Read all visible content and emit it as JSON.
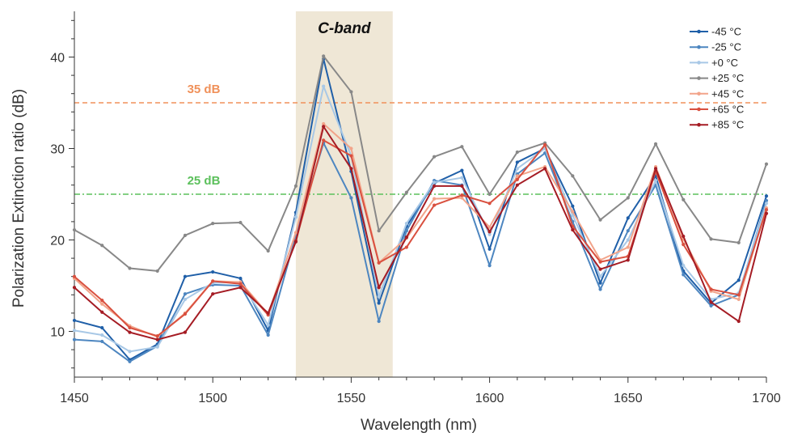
{
  "chart_data": {
    "type": "line",
    "xlabel": "Wavelength (nm)",
    "ylabel": "Polarization Extinction ratio (dB)",
    "xlim": [
      1450,
      1700
    ],
    "ylim": [
      5,
      45
    ],
    "xticks": [
      1450,
      1500,
      1550,
      1600,
      1650,
      1700
    ],
    "yticks": [
      10,
      20,
      30,
      40
    ],
    "grid": false,
    "legend_position": "top-right",
    "band": {
      "label": "C-band",
      "x_start": 1530,
      "x_end": 1565,
      "color": "#efe7d6"
    },
    "reference_lines": [
      {
        "label": "35 dB",
        "y": 35,
        "color": "#f0915a",
        "style": "dashed"
      },
      {
        "label": "25 dB",
        "y": 25,
        "color": "#5cc05c",
        "style": "dashdot"
      }
    ],
    "x": [
      1450,
      1460,
      1470,
      1480,
      1490,
      1500,
      1510,
      1520,
      1530,
      1540,
      1550,
      1560,
      1570,
      1580,
      1590,
      1600,
      1610,
      1620,
      1630,
      1640,
      1650,
      1660,
      1670,
      1680,
      1690,
      1700
    ],
    "series": [
      {
        "name": "-45 °C",
        "color": "#1f5fa8",
        "values": [
          11.2,
          10.4,
          6.9,
          8.6,
          16.0,
          16.5,
          15.8,
          10.1,
          23.0,
          39.8,
          27.5,
          13.1,
          21.5,
          26.2,
          27.6,
          19.0,
          28.5,
          30.0,
          23.7,
          15.3,
          22.4,
          27.0,
          16.6,
          13.1,
          15.6,
          24.8
        ]
      },
      {
        "name": "-25 °C",
        "color": "#4d86c0",
        "values": [
          9.1,
          8.9,
          6.7,
          8.4,
          14.1,
          15.1,
          15.0,
          9.6,
          20.5,
          30.6,
          24.6,
          11.1,
          21.0,
          26.5,
          26.0,
          17.2,
          27.2,
          29.5,
          22.0,
          14.6,
          21.0,
          26.0,
          16.2,
          12.8,
          14.0,
          24.3
        ]
      },
      {
        "name": "+0 °C",
        "color": "#a8c8e6",
        "values": [
          10.1,
          9.6,
          7.8,
          8.3,
          13.5,
          15.3,
          15.4,
          10.7,
          22.5,
          36.8,
          29.2,
          13.8,
          21.8,
          26.3,
          26.8,
          20.6,
          27.8,
          30.0,
          22.7,
          16.0,
          20.0,
          26.5,
          17.2,
          13.5,
          14.2,
          24.0
        ]
      },
      {
        "name": "+25 °C",
        "color": "#888888",
        "values": [
          21.1,
          19.4,
          16.9,
          16.6,
          20.5,
          21.8,
          21.9,
          18.8,
          25.9,
          40.1,
          36.2,
          21.0,
          25.2,
          29.1,
          30.2,
          25.0,
          29.6,
          30.6,
          27.0,
          22.2,
          24.6,
          30.5,
          24.4,
          20.1,
          19.7,
          28.3
        ]
      },
      {
        "name": "+45 °C",
        "color": "#f2a48a",
        "values": [
          15.8,
          13.0,
          10.6,
          9.4,
          12.0,
          15.5,
          15.4,
          11.9,
          20.8,
          32.7,
          30.0,
          17.5,
          20.2,
          24.5,
          24.6,
          21.4,
          27.0,
          28.0,
          23.1,
          17.8,
          19.2,
          28.0,
          20.1,
          14.4,
          13.5,
          23.5
        ]
      },
      {
        "name": "+65 °C",
        "color": "#d9503f",
        "values": [
          16.0,
          13.4,
          10.4,
          9.5,
          11.9,
          15.5,
          15.2,
          11.8,
          19.9,
          30.9,
          29.2,
          17.5,
          19.2,
          23.8,
          24.9,
          24.0,
          26.6,
          30.4,
          21.5,
          17.6,
          18.2,
          27.5,
          19.5,
          14.6,
          14.0,
          23.3
        ]
      },
      {
        "name": "+85 °C",
        "color": "#a51c24",
        "values": [
          14.8,
          12.1,
          9.9,
          9.1,
          9.9,
          14.1,
          14.8,
          12.0,
          19.8,
          32.4,
          27.8,
          14.8,
          20.3,
          25.9,
          25.9,
          20.9,
          26.0,
          27.8,
          21.1,
          16.8,
          17.8,
          27.8,
          20.4,
          13.2,
          11.1,
          22.9
        ]
      }
    ]
  }
}
